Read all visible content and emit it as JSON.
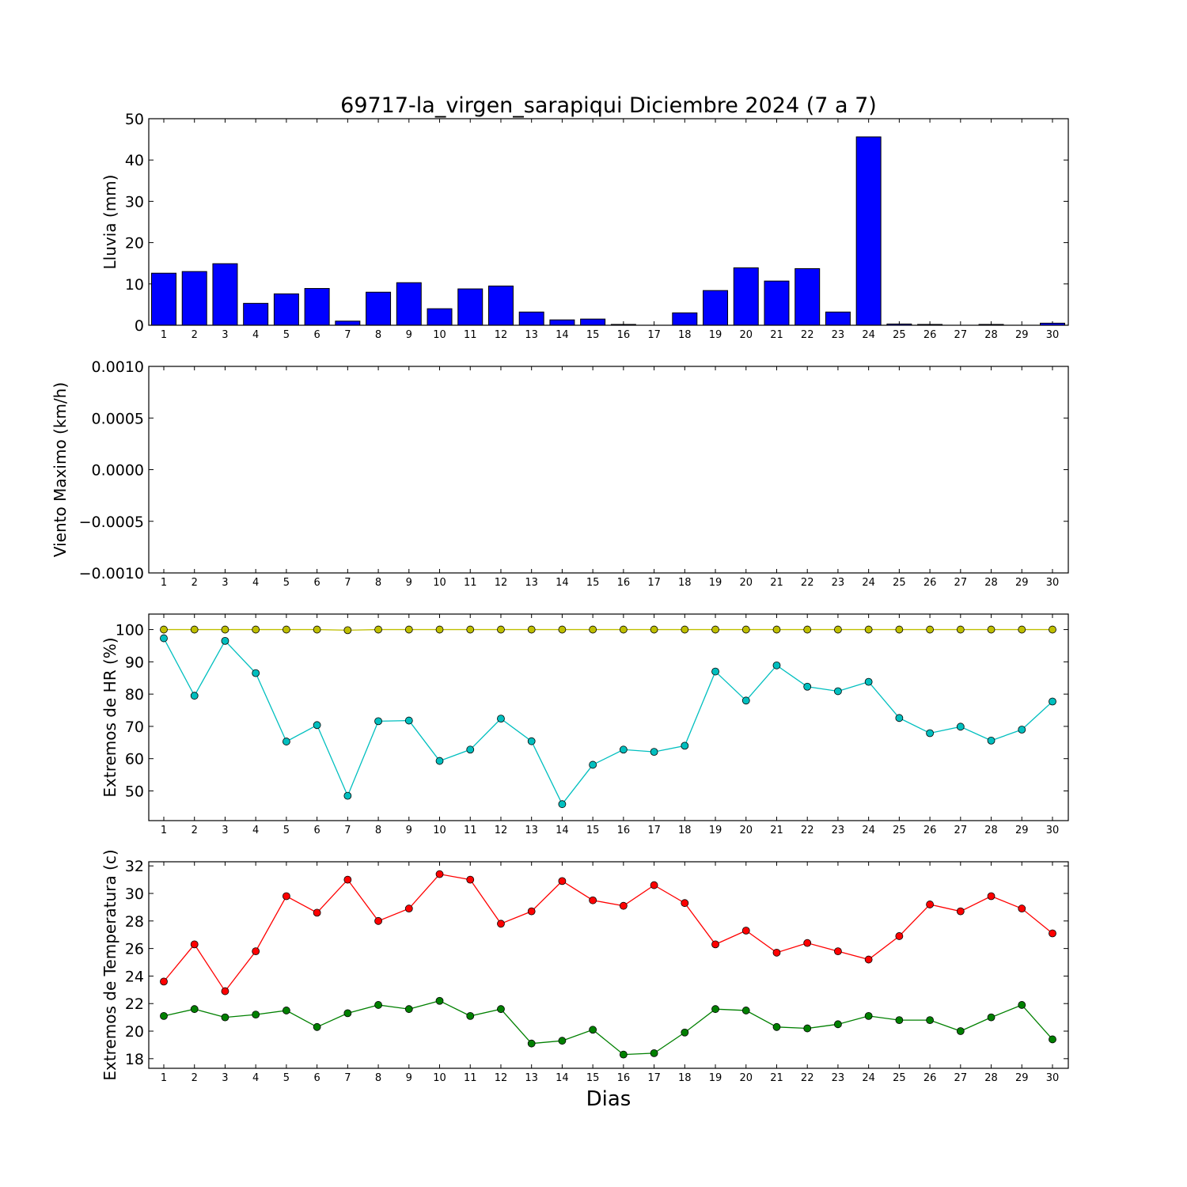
{
  "title": "69717-la_virgen_sarapiqui Diciembre 2024  (7 a 7)",
  "xlabel": "Dias",
  "days": [
    1,
    2,
    3,
    4,
    5,
    6,
    7,
    8,
    9,
    10,
    11,
    12,
    13,
    14,
    15,
    16,
    17,
    18,
    19,
    20,
    21,
    22,
    23,
    24,
    25,
    26,
    27,
    28,
    29,
    30
  ],
  "colors": {
    "rain": "#0000ff",
    "hr_max": "#bfbf00",
    "hr_min": "#00bfbf",
    "temp_max": "#ff0000",
    "temp_min": "#008000"
  },
  "chart_data": [
    {
      "type": "bar",
      "ylabel": "Lluvia (mm)",
      "ylim": [
        0,
        50
      ],
      "yticks": [
        "0",
        "10",
        "20",
        "30",
        "40",
        "50"
      ],
      "categories": [
        1,
        2,
        3,
        4,
        5,
        6,
        7,
        8,
        9,
        10,
        11,
        12,
        13,
        14,
        15,
        16,
        17,
        18,
        19,
        20,
        21,
        22,
        23,
        24,
        25,
        26,
        27,
        28,
        29,
        30
      ],
      "values": [
        12.6,
        13.0,
        14.9,
        5.3,
        7.6,
        8.9,
        1.0,
        8.0,
        10.3,
        4.0,
        8.8,
        9.5,
        3.2,
        1.3,
        1.5,
        0.2,
        0,
        3.0,
        8.4,
        13.9,
        10.7,
        13.7,
        3.2,
        45.6,
        0.3,
        0.2,
        0,
        0.2,
        0,
        0.5
      ]
    },
    {
      "type": "line",
      "ylabel": "Viento Maximo (km/h)",
      "ylim": [
        -0.001,
        0.001
      ],
      "yticks": [
        "−0.0010",
        "−0.0005",
        "0.0000",
        "0.0005",
        "0.0010"
      ],
      "series": []
    },
    {
      "type": "line",
      "ylabel": "Extremos de HR (%)",
      "ylim": [
        40.8,
        104.8
      ],
      "yticks": [
        "50",
        "60",
        "70",
        "80",
        "90",
        "100"
      ],
      "x": [
        1,
        2,
        3,
        4,
        5,
        6,
        7,
        8,
        9,
        10,
        11,
        12,
        13,
        14,
        15,
        16,
        17,
        18,
        19,
        20,
        21,
        22,
        23,
        24,
        25,
        26,
        27,
        28,
        29,
        30
      ],
      "series": [
        {
          "values": [
            100,
            100,
            100,
            100,
            100,
            100,
            99.8,
            100,
            100,
            100,
            100,
            100,
            100,
            100,
            100,
            100,
            100,
            100,
            100,
            100,
            100,
            100,
            100,
            100,
            100,
            100,
            100,
            100,
            100,
            100
          ]
        },
        {
          "values": [
            97.3,
            79.5,
            96.5,
            86.5,
            65.3,
            70.4,
            48.5,
            71.6,
            71.8,
            59.3,
            62.8,
            72.4,
            65.4,
            45.9,
            58.1,
            62.8,
            62.1,
            64.0,
            87.0,
            78.0,
            88.9,
            82.3,
            80.9,
            83.8,
            72.6,
            67.9,
            69.9,
            65.6,
            69.0,
            77.7
          ]
        }
      ]
    },
    {
      "type": "line",
      "ylabel": "Extremos de Temperatura (c)",
      "ylim": [
        17.3,
        32.3
      ],
      "yticks": [
        "18",
        "20",
        "22",
        "24",
        "26",
        "28",
        "30",
        "32"
      ],
      "x": [
        1,
        2,
        3,
        4,
        5,
        6,
        7,
        8,
        9,
        10,
        11,
        12,
        13,
        14,
        15,
        16,
        17,
        18,
        19,
        20,
        21,
        22,
        23,
        24,
        25,
        26,
        27,
        28,
        29,
        30
      ],
      "series": [
        {
          "values": [
            23.6,
            26.3,
            22.9,
            25.8,
            29.8,
            28.6,
            31.0,
            28.0,
            28.9,
            31.4,
            31.0,
            27.8,
            28.7,
            30.9,
            29.5,
            29.1,
            30.6,
            29.3,
            26.3,
            27.3,
            25.7,
            26.4,
            25.8,
            25.2,
            26.9,
            29.2,
            28.7,
            29.8,
            28.9,
            27.1
          ]
        },
        {
          "values": [
            21.1,
            21.6,
            21.0,
            21.2,
            21.5,
            20.3,
            21.3,
            21.9,
            21.6,
            22.2,
            21.1,
            21.6,
            19.1,
            19.3,
            20.1,
            18.3,
            18.4,
            19.9,
            21.6,
            21.5,
            20.3,
            20.2,
            20.5,
            21.1,
            20.8,
            20.8,
            20.0,
            21.0,
            21.9,
            19.4
          ]
        }
      ]
    }
  ]
}
